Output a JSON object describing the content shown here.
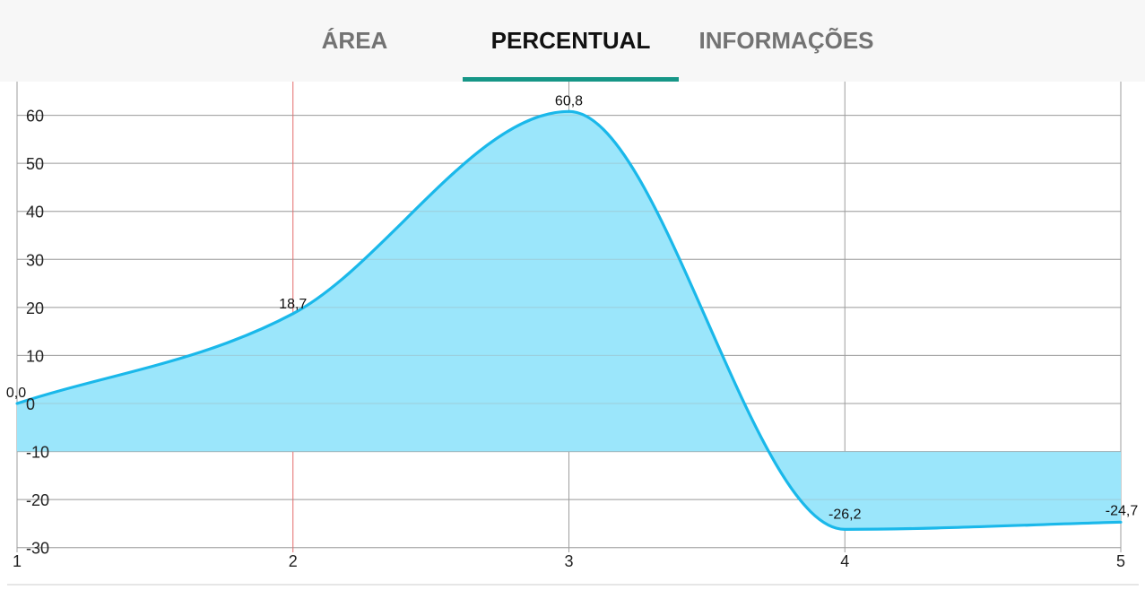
{
  "tabs": [
    {
      "label": "ÁREA",
      "active": false
    },
    {
      "label": "PERCENTUAL",
      "active": true
    },
    {
      "label": "INFORMAÇÕES",
      "active": false
    }
  ],
  "colors": {
    "accent": "#169687",
    "line": "#1ab8ea",
    "fill": "#9be6fb",
    "grid": "#9e9e9e",
    "highlight_line": "#e46b6b"
  },
  "chart_data": {
    "type": "area",
    "x": [
      1,
      2,
      3,
      4,
      5
    ],
    "values": [
      0.0,
      18.7,
      60.8,
      -26.2,
      -24.7
    ],
    "point_labels": [
      "0,0",
      "18,7",
      "60,8",
      "-26,2",
      "-24,7"
    ],
    "baseline": -10,
    "highlighted_x": 2,
    "ylim": [
      -30,
      65
    ],
    "yticks": [
      60,
      50,
      40,
      30,
      20,
      10,
      0,
      -10,
      -20,
      -30
    ],
    "xticks": [
      "1",
      "2",
      "3",
      "4",
      "5"
    ],
    "grid": true
  }
}
